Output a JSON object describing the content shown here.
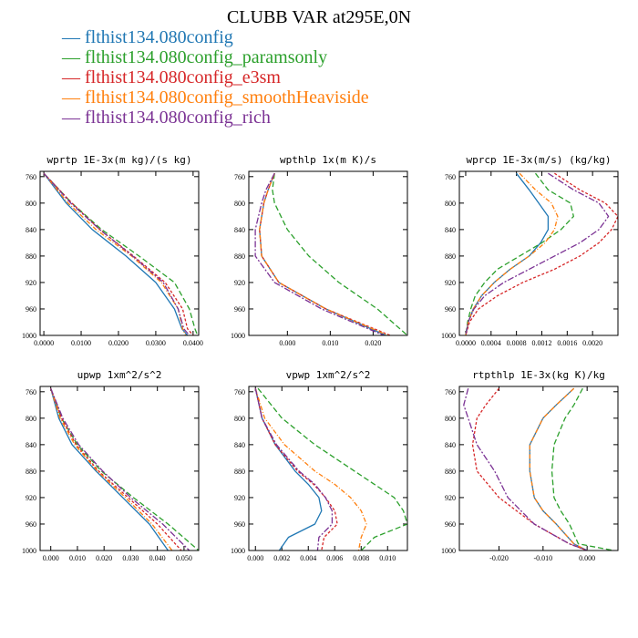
{
  "title": "CLUBB VAR at295E,0N",
  "legend": [
    {
      "label": "flthist134.080config",
      "color": "#1f77b4"
    },
    {
      "label": "flthist134.080config_paramsonly",
      "color": "#2ca02c"
    },
    {
      "label": "flthist134.080config_e3sm",
      "color": "#d62728"
    },
    {
      "label": "flthist134.080config_smoothHeaviside",
      "color": "#ff7f0e"
    },
    {
      "label": "flthist134.080config_rich",
      "color": "#7b3294"
    }
  ],
  "chart_data": [
    {
      "type": "line",
      "title": "wprtp  1E-3x(m kg)/(s kg)",
      "xlim": [
        -0.001,
        0.0415
      ],
      "ylim": [
        1000,
        752
      ],
      "xticks": [
        0.0,
        0.01,
        0.02,
        0.03,
        0.04
      ],
      "xticklabels": [
        "0.0000",
        "0.0100",
        "0.0200",
        "0.0300",
        "0.0400"
      ],
      "yticks": [
        760,
        800,
        840,
        880,
        920,
        960,
        1000
      ],
      "y": [
        755,
        800,
        840,
        880,
        920,
        960,
        990,
        1000
      ],
      "series": [
        {
          "name": "flthist134.080config",
          "values": [
            0.0,
            0.006,
            0.013,
            0.022,
            0.03,
            0.035,
            0.037,
            0.0385
          ]
        },
        {
          "name": "flthist134.080config_paramsonly",
          "values": [
            0.0,
            0.0075,
            0.0155,
            0.0255,
            0.035,
            0.039,
            0.0405,
            0.0412
          ]
        },
        {
          "name": "flthist134.080config_e3sm",
          "values": [
            0.0,
            0.0075,
            0.015,
            0.024,
            0.0325,
            0.0372,
            0.0385,
            0.04
          ]
        },
        {
          "name": "flthist134.080config_smoothHeaviside",
          "values": [
            0.0,
            0.0065,
            0.014,
            0.0235,
            0.0315,
            0.036,
            0.0372,
            0.038
          ]
        },
        {
          "name": "flthist134.080config_rich",
          "values": [
            0.0,
            0.0072,
            0.015,
            0.0238,
            0.032,
            0.036,
            0.0375,
            0.039
          ]
        }
      ]
    },
    {
      "type": "line",
      "title": "wpthlp  1x(m K)/s",
      "xlim": [
        -0.009,
        0.028
      ],
      "ylim": [
        1000,
        752
      ],
      "xticks": [
        0.0,
        0.01,
        0.02
      ],
      "xticklabels": [
        "0.000",
        "0.010",
        "0.020"
      ],
      "yticks": [
        760,
        800,
        840,
        880,
        920,
        960,
        1000
      ],
      "y": [
        755,
        780,
        800,
        840,
        880,
        920,
        960,
        1000
      ],
      "series": [
        {
          "name": "flthist134.080config",
          "values": [
            -0.003,
            -0.0045,
            -0.0055,
            -0.0065,
            -0.006,
            -0.002,
            0.009,
            0.023
          ]
        },
        {
          "name": "flthist134.080config_paramsonly",
          "values": [
            -0.003,
            -0.0035,
            -0.003,
            0.0,
            0.005,
            0.012,
            0.021,
            0.028
          ]
        },
        {
          "name": "flthist134.080config_e3sm",
          "values": [
            -0.003,
            -0.0045,
            -0.0055,
            -0.0065,
            -0.006,
            -0.002,
            0.009,
            0.024
          ]
        },
        {
          "name": "flthist134.080config_smoothHeaviside",
          "values": [
            -0.003,
            -0.0045,
            -0.0055,
            -0.0065,
            -0.006,
            -0.002,
            0.009,
            0.0235
          ]
        },
        {
          "name": "flthist134.080config_rich",
          "values": [
            -0.003,
            -0.005,
            -0.006,
            -0.0075,
            -0.0075,
            -0.003,
            0.008,
            0.0225
          ]
        }
      ]
    },
    {
      "type": "line",
      "title": "wprcp  1E-3x(m/s) (kg/kg)",
      "xlim": [
        -0.0001,
        0.0024
      ],
      "ylim": [
        1000,
        752
      ],
      "xticks": [
        0.0,
        0.0004,
        0.0008,
        0.0012,
        0.0016,
        0.002
      ],
      "xticklabels": [
        "0.0000",
        "0.0004",
        "0.0008",
        "0.0012",
        "0.0016",
        "0.0020"
      ],
      "yticks": [
        760,
        800,
        840,
        880,
        920,
        960,
        1000
      ],
      "y": [
        755,
        780,
        800,
        820,
        840,
        860,
        880,
        900,
        920,
        940,
        960,
        980,
        1000
      ],
      "series": [
        {
          "name": "flthist134.080config",
          "values": [
            0.0008,
            0.001,
            0.00115,
            0.0013,
            0.0013,
            0.00118,
            0.001,
            0.0007,
            0.00045,
            0.00025,
            0.00012,
            4e-05,
            0.0
          ]
        },
        {
          "name": "flthist134.080config_paramsonly",
          "values": [
            0.0011,
            0.0013,
            0.00165,
            0.0017,
            0.0015,
            0.0012,
            0.00085,
            0.0005,
            0.0003,
            0.00015,
            8e-05,
            3e-05,
            0.0
          ]
        },
        {
          "name": "flthist134.080config_e3sm",
          "values": [
            0.0014,
            0.0018,
            0.0022,
            0.0024,
            0.0023,
            0.0021,
            0.0018,
            0.0014,
            0.0009,
            0.0005,
            0.0002,
            6e-05,
            0.0
          ]
        },
        {
          "name": "flthist134.080config_smoothHeaviside",
          "values": [
            0.00085,
            0.0011,
            0.00135,
            0.00145,
            0.0014,
            0.00125,
            0.001,
            0.0007,
            0.00045,
            0.00025,
            0.00012,
            4e-05,
            0.0
          ]
        },
        {
          "name": "flthist134.080config_rich",
          "values": [
            0.0013,
            0.0017,
            0.0021,
            0.00225,
            0.0021,
            0.0018,
            0.0014,
            0.001,
            0.0006,
            0.0003,
            0.00013,
            4e-05,
            0.0
          ]
        }
      ]
    },
    {
      "type": "line",
      "title": "upwp  1xm^2/s^2",
      "xlim": [
        -0.004,
        0.0555
      ],
      "ylim": [
        1000,
        752
      ],
      "xticks": [
        0.0,
        0.01,
        0.02,
        0.03,
        0.04,
        0.05
      ],
      "xticklabels": [
        "0.000",
        "0.010",
        "0.020",
        "0.030",
        "0.040",
        "0.050"
      ],
      "yticks": [
        760,
        800,
        840,
        880,
        920,
        960,
        1000
      ],
      "y": [
        755,
        800,
        840,
        880,
        920,
        960,
        1000
      ],
      "series": [
        {
          "name": "flthist134.080config",
          "values": [
            0.0,
            0.003,
            0.008,
            0.017,
            0.027,
            0.037,
            0.044
          ]
        },
        {
          "name": "flthist134.080config_paramsonly",
          "values": [
            0.0,
            0.004,
            0.01,
            0.019,
            0.031,
            0.044,
            0.0555
          ]
        },
        {
          "name": "flthist134.080config_e3sm",
          "values": [
            0.0,
            0.004,
            0.0095,
            0.018,
            0.029,
            0.04,
            0.049
          ]
        },
        {
          "name": "flthist134.080config_smoothHeaviside",
          "values": [
            0.0,
            0.0035,
            0.009,
            0.0175,
            0.028,
            0.038,
            0.0455
          ]
        },
        {
          "name": "flthist134.080config_rich",
          "values": [
            0.0,
            0.0045,
            0.0105,
            0.0195,
            0.03,
            0.042,
            0.052
          ]
        }
      ]
    },
    {
      "type": "line",
      "title": "vpwp  1xm^2/s^2",
      "xlim": [
        -0.0005,
        0.0115
      ],
      "ylim": [
        1000,
        752
      ],
      "xticks": [
        0.0,
        0.002,
        0.004,
        0.006,
        0.008,
        0.01
      ],
      "xticklabels": [
        "0.000",
        "0.002",
        "0.004",
        "0.006",
        "0.008",
        "0.010"
      ],
      "yticks": [
        760,
        800,
        840,
        880,
        920,
        960,
        1000
      ],
      "y": [
        755,
        800,
        840,
        880,
        900,
        920,
        940,
        960,
        980,
        1000
      ],
      "series": [
        {
          "name": "flthist134.080config",
          "values": [
            0.0,
            0.0005,
            0.0015,
            0.003,
            0.004,
            0.0048,
            0.005,
            0.0045,
            0.0025,
            0.0018
          ]
        },
        {
          "name": "flthist134.080config_paramsonly",
          "values": [
            0.0002,
            0.002,
            0.0045,
            0.0075,
            0.009,
            0.0105,
            0.0112,
            0.0115,
            0.009,
            0.008
          ]
        },
        {
          "name": "flthist134.080config_e3sm",
          "values": [
            0.0,
            0.0005,
            0.0015,
            0.0032,
            0.0044,
            0.0053,
            0.006,
            0.0062,
            0.0052,
            0.005
          ]
        },
        {
          "name": "flthist134.080config_smoothHeaviside",
          "values": [
            0.0,
            0.0007,
            0.0022,
            0.0045,
            0.006,
            0.0072,
            0.008,
            0.0084,
            0.008,
            0.0078
          ]
        },
        {
          "name": "flthist134.080config_rich",
          "values": [
            0.0,
            0.0005,
            0.0016,
            0.0033,
            0.0045,
            0.0053,
            0.0058,
            0.0058,
            0.0048,
            0.0047
          ]
        }
      ]
    },
    {
      "type": "line",
      "title": "rtpthlp  1E-3x(kg K)/kg",
      "xlim": [
        -0.029,
        0.007
      ],
      "ylim": [
        1000,
        752
      ],
      "xticks": [
        -0.02,
        -0.01,
        0.0
      ],
      "xticklabels": [
        "-0.020",
        "-0.010",
        "0.000"
      ],
      "yticks": [
        760,
        800,
        840,
        880,
        920,
        960,
        1000
      ],
      "y": [
        755,
        780,
        800,
        840,
        880,
        920,
        940,
        960,
        975,
        990,
        1000
      ],
      "series": [
        {
          "name": "flthist134.080config",
          "values": [
            -0.003,
            -0.007,
            -0.01,
            -0.013,
            -0.013,
            -0.012,
            -0.01,
            -0.007,
            -0.005,
            -0.003,
            0.0
          ]
        },
        {
          "name": "flthist134.080config_paramsonly",
          "values": [
            -0.001,
            -0.003,
            -0.005,
            -0.0075,
            -0.008,
            -0.0075,
            -0.006,
            -0.004,
            -0.003,
            -0.002,
            0.006
          ]
        },
        {
          "name": "flthist134.080config_e3sm",
          "values": [
            -0.02,
            -0.023,
            -0.025,
            -0.026,
            -0.025,
            -0.02,
            -0.016,
            -0.012,
            -0.008,
            -0.004,
            0.0
          ]
        },
        {
          "name": "flthist134.080config_smoothHeaviside",
          "values": [
            -0.003,
            -0.007,
            -0.01,
            -0.013,
            -0.013,
            -0.012,
            -0.01,
            -0.007,
            -0.005,
            -0.003,
            0.0
          ]
        },
        {
          "name": "flthist134.080config_rich",
          "values": [
            -0.027,
            -0.028,
            -0.027,
            -0.025,
            -0.021,
            -0.018,
            -0.015,
            -0.012,
            -0.008,
            -0.004,
            0.0
          ]
        }
      ]
    }
  ]
}
